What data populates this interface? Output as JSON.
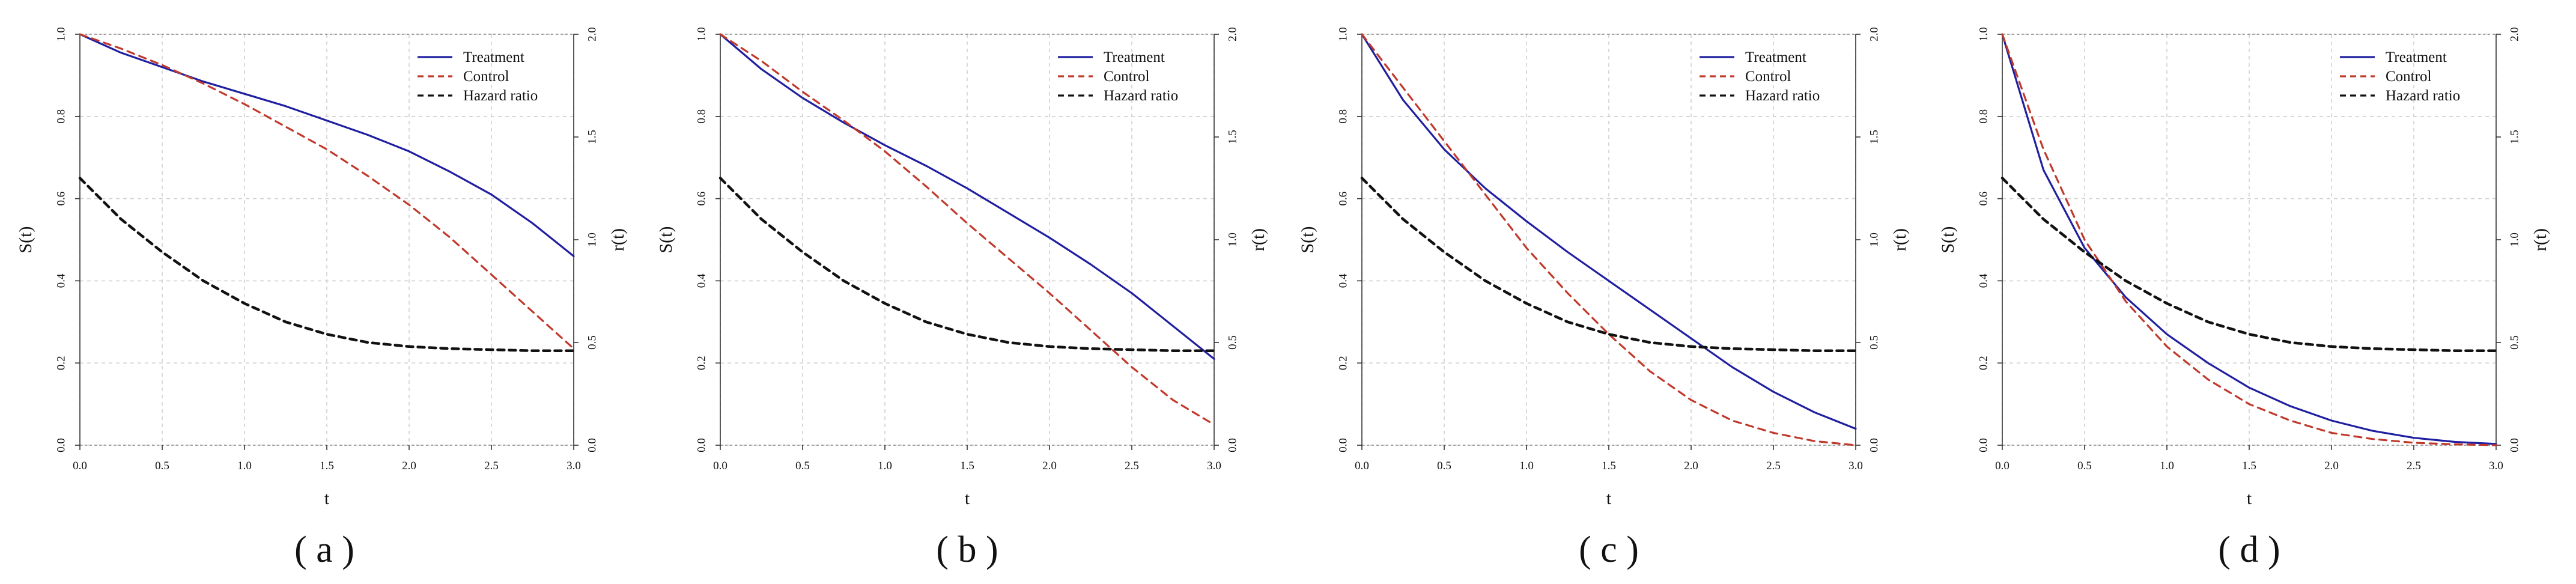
{
  "colors": {
    "treatment": "#1f1fa0",
    "control": "#c0392b",
    "hazard": "#111111",
    "grid": "#d0d0d0"
  },
  "chart_data": [
    {
      "type": "line",
      "caption": "( a )",
      "xlabel": "t",
      "ylabel": "S(t)",
      "ylabel_right": "r(t)",
      "xlim": [
        0,
        3
      ],
      "ylim": [
        0,
        1
      ],
      "ylim_right": [
        0,
        2
      ],
      "x_ticks": [
        "0.0",
        "0.5",
        "1.0",
        "1.5",
        "2.0",
        "2.5",
        "3.0"
      ],
      "y_ticks": [
        "0.0",
        "0.2",
        "0.4",
        "0.6",
        "0.8",
        "1.0"
      ],
      "y_ticks_right": [
        "0.0",
        "0.5",
        "1.0",
        "1.5",
        "2.0"
      ],
      "grid": true,
      "legend_position": "top-right",
      "x": [
        0,
        0.25,
        0.5,
        0.75,
        1,
        1.25,
        1.5,
        1.75,
        2,
        2.25,
        2.5,
        2.75,
        3
      ],
      "series": [
        {
          "name": "Treatment",
          "axis": "left",
          "style": "solid",
          "values": [
            1.0,
            0.955,
            0.92,
            0.885,
            0.855,
            0.825,
            0.79,
            0.755,
            0.715,
            0.665,
            0.61,
            0.54,
            0.46
          ]
        },
        {
          "name": "Control",
          "axis": "left",
          "style": "dashed",
          "values": [
            1.0,
            0.965,
            0.925,
            0.88,
            0.83,
            0.775,
            0.72,
            0.655,
            0.585,
            0.505,
            0.415,
            0.325,
            0.235
          ]
        },
        {
          "name": "Hazard ratio",
          "axis": "right",
          "style": "dashed",
          "values": [
            1.3,
            1.1,
            0.94,
            0.8,
            0.69,
            0.6,
            0.54,
            0.5,
            0.48,
            0.47,
            0.465,
            0.46,
            0.46
          ]
        }
      ]
    },
    {
      "type": "line",
      "caption": "( b )",
      "xlabel": "t",
      "ylabel": "S(t)",
      "ylabel_right": "r(t)",
      "xlim": [
        0,
        3
      ],
      "ylim": [
        0,
        1
      ],
      "ylim_right": [
        0,
        2
      ],
      "x_ticks": [
        "0.0",
        "0.5",
        "1.0",
        "1.5",
        "2.0",
        "2.5",
        "3.0"
      ],
      "y_ticks": [
        "0.0",
        "0.2",
        "0.4",
        "0.6",
        "0.8",
        "1.0"
      ],
      "y_ticks_right": [
        "0.0",
        "0.5",
        "1.0",
        "1.5",
        "2.0"
      ],
      "grid": true,
      "legend_position": "top-right",
      "x": [
        0,
        0.25,
        0.5,
        0.75,
        1,
        1.25,
        1.5,
        1.75,
        2,
        2.25,
        2.5,
        2.75,
        3
      ],
      "series": [
        {
          "name": "Treatment",
          "axis": "left",
          "style": "solid",
          "values": [
            1.0,
            0.915,
            0.845,
            0.785,
            0.73,
            0.68,
            0.625,
            0.565,
            0.505,
            0.44,
            0.37,
            0.29,
            0.21
          ]
        },
        {
          "name": "Control",
          "axis": "left",
          "style": "dashed",
          "values": [
            1.0,
            0.935,
            0.86,
            0.79,
            0.715,
            0.63,
            0.54,
            0.455,
            0.37,
            0.28,
            0.19,
            0.11,
            0.05
          ]
        },
        {
          "name": "Hazard ratio",
          "axis": "right",
          "style": "dashed",
          "values": [
            1.3,
            1.1,
            0.94,
            0.8,
            0.69,
            0.6,
            0.54,
            0.5,
            0.48,
            0.47,
            0.465,
            0.46,
            0.46
          ]
        }
      ]
    },
    {
      "type": "line",
      "caption": "( c )",
      "xlabel": "t",
      "ylabel": "S(t)",
      "ylabel_right": "r(t)",
      "xlim": [
        0,
        3
      ],
      "ylim": [
        0,
        1
      ],
      "ylim_right": [
        0,
        2
      ],
      "x_ticks": [
        "0.0",
        "0.5",
        "1.0",
        "1.5",
        "2.0",
        "2.5",
        "3.0"
      ],
      "y_ticks": [
        "0.0",
        "0.2",
        "0.4",
        "0.6",
        "0.8",
        "1.0"
      ],
      "y_ticks_right": [
        "0.0",
        "0.5",
        "1.0",
        "1.5",
        "2.0"
      ],
      "grid": true,
      "legend_position": "top-right",
      "x": [
        0,
        0.25,
        0.5,
        0.75,
        1,
        1.25,
        1.5,
        1.75,
        2,
        2.25,
        2.5,
        2.75,
        3
      ],
      "series": [
        {
          "name": "Treatment",
          "axis": "left",
          "style": "solid",
          "values": [
            1.0,
            0.84,
            0.72,
            0.625,
            0.545,
            0.47,
            0.4,
            0.33,
            0.26,
            0.19,
            0.13,
            0.08,
            0.04
          ]
        },
        {
          "name": "Control",
          "axis": "left",
          "style": "dashed",
          "values": [
            1.0,
            0.87,
            0.74,
            0.61,
            0.48,
            0.37,
            0.27,
            0.18,
            0.11,
            0.06,
            0.03,
            0.01,
            0.0
          ]
        },
        {
          "name": "Hazard ratio",
          "axis": "right",
          "style": "dashed",
          "values": [
            1.3,
            1.1,
            0.94,
            0.8,
            0.69,
            0.6,
            0.54,
            0.5,
            0.48,
            0.47,
            0.465,
            0.46,
            0.46
          ]
        }
      ]
    },
    {
      "type": "line",
      "caption": "( d )",
      "xlabel": "t",
      "ylabel": "S(t)",
      "ylabel_right": "r(t)",
      "xlim": [
        0,
        3
      ],
      "ylim": [
        0,
        1
      ],
      "ylim_right": [
        0,
        2
      ],
      "x_ticks": [
        "0.0",
        "0.5",
        "1.0",
        "1.5",
        "2.0",
        "2.5",
        "3.0"
      ],
      "y_ticks": [
        "0.0",
        "0.2",
        "0.4",
        "0.6",
        "0.8",
        "1.0"
      ],
      "y_ticks_right": [
        "0.0",
        "0.5",
        "1.0",
        "1.5",
        "2.0"
      ],
      "grid": true,
      "legend_position": "top-right",
      "x": [
        0,
        0.25,
        0.5,
        0.75,
        1,
        1.25,
        1.5,
        1.75,
        2,
        2.25,
        2.5,
        2.75,
        3
      ],
      "series": [
        {
          "name": "Treatment",
          "axis": "left",
          "style": "solid",
          "values": [
            1.0,
            0.67,
            0.48,
            0.36,
            0.27,
            0.2,
            0.14,
            0.095,
            0.06,
            0.035,
            0.018,
            0.008,
            0.003
          ]
        },
        {
          "name": "Control",
          "axis": "left",
          "style": "dashed",
          "values": [
            1.0,
            0.72,
            0.5,
            0.35,
            0.24,
            0.16,
            0.1,
            0.06,
            0.03,
            0.015,
            0.006,
            0.002,
            0.0
          ]
        },
        {
          "name": "Hazard ratio",
          "axis": "right",
          "style": "dashed",
          "values": [
            1.3,
            1.1,
            0.94,
            0.8,
            0.69,
            0.6,
            0.54,
            0.5,
            0.48,
            0.47,
            0.465,
            0.46,
            0.46
          ]
        }
      ]
    }
  ]
}
